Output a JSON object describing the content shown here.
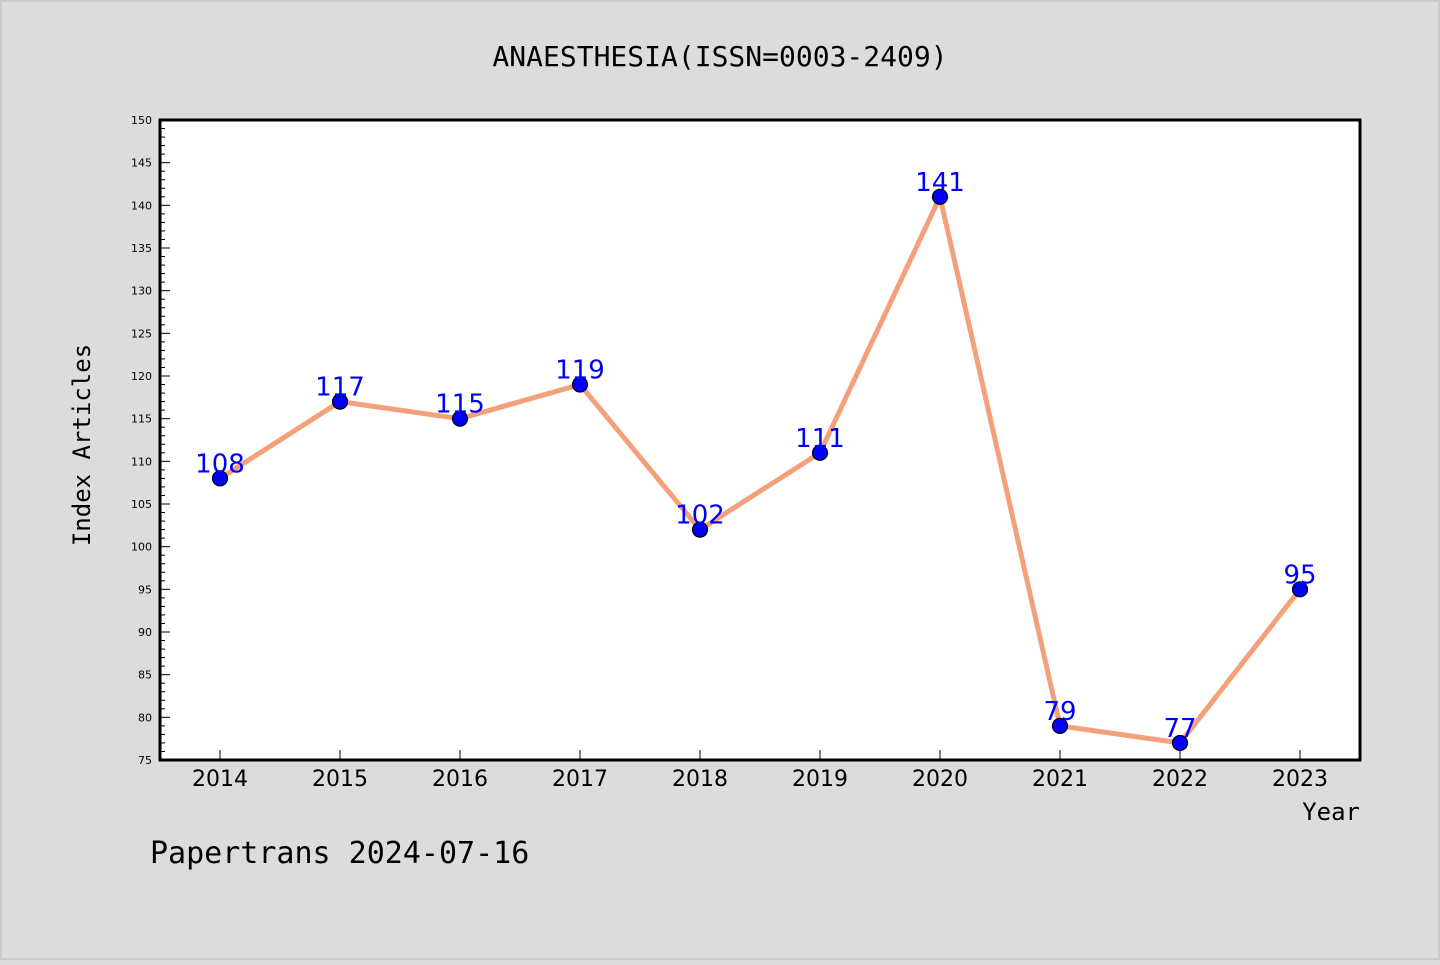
{
  "chart_data": {
    "type": "line",
    "title": "ANAESTHESIA(ISSN=0003-2409)",
    "xlabel": "Year",
    "ylabel": "Index Articles",
    "categories": [
      "2014",
      "2015",
      "2016",
      "2017",
      "2018",
      "2019",
      "2020",
      "2021",
      "2022",
      "2023"
    ],
    "series": [
      {
        "values": [
          108,
          117,
          115,
          119,
          102,
          111,
          141,
          79,
          77,
          95
        ]
      }
    ],
    "ylim": [
      75,
      150
    ],
    "yticks": [
      75,
      80,
      85,
      90,
      95,
      100,
      105,
      110,
      115,
      120,
      125,
      130,
      135,
      140,
      145,
      150
    ],
    "grid": false,
    "legend": "none",
    "line_color": "#f4a07a",
    "marker_color": "#0000ff",
    "label_color": "#0000ff"
  },
  "footer": {
    "text": "Papertrans 2024-07-16"
  },
  "colors": {
    "background": "#dcdcdc",
    "plot_area": "#ffffff"
  }
}
